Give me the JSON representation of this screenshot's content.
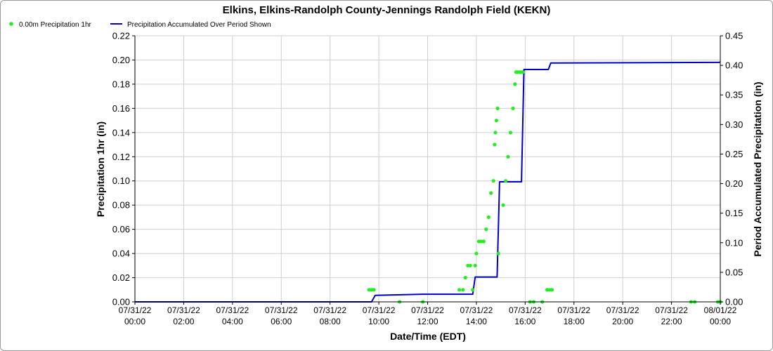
{
  "chart_data": {
    "type": "line",
    "title": "Elkins, Elkins-Randolph County-Jennings Randolph Field (KEKN)",
    "xlabel": "Date/Time (EDT)",
    "ylabel_left": "Precipitation 1hr (in)",
    "ylabel_right": "Period Accumulated Precipitation (in)",
    "legend_placement": "top-left",
    "grid": true,
    "colors": {
      "scatter": "#22ee22",
      "line": "#0000cc",
      "grid": "#cfcfcf",
      "axis": "#000000"
    },
    "x_ticks": [
      {
        "h": 0,
        "d": "07/31/22",
        "t": "00:00"
      },
      {
        "h": 2,
        "d": "07/31/22",
        "t": "02:00"
      },
      {
        "h": 4,
        "d": "07/31/22",
        "t": "04:00"
      },
      {
        "h": 6,
        "d": "07/31/22",
        "t": "06:00"
      },
      {
        "h": 8,
        "d": "07/31/22",
        "t": "08:00"
      },
      {
        "h": 10,
        "d": "07/31/22",
        "t": "10:00"
      },
      {
        "h": 12,
        "d": "07/31/22",
        "t": "12:00"
      },
      {
        "h": 14,
        "d": "07/31/22",
        "t": "14:00"
      },
      {
        "h": 16,
        "d": "07/31/22",
        "t": "16:00"
      },
      {
        "h": 18,
        "d": "07/31/22",
        "t": "18:00"
      },
      {
        "h": 20,
        "d": "07/31/22",
        "t": "20:00"
      },
      {
        "h": 22,
        "d": "07/31/22",
        "t": "22:00"
      },
      {
        "h": 24,
        "d": "08/01/22",
        "t": "00:00"
      }
    ],
    "xlim": [
      0,
      24
    ],
    "y_left": {
      "lim": [
        0,
        0.22
      ],
      "ticks": [
        "0.00",
        "0.02",
        "0.04",
        "0.06",
        "0.08",
        "0.10",
        "0.12",
        "0.14",
        "0.16",
        "0.18",
        "0.20",
        "0.22"
      ]
    },
    "y_right": {
      "lim": [
        0,
        0.45
      ],
      "ticks": [
        "0.00",
        "0.05",
        "0.10",
        "0.15",
        "0.20",
        "0.25",
        "0.30",
        "0.35",
        "0.40",
        "0.45"
      ]
    },
    "series": [
      {
        "name": "0.00m Precipitation 1hr",
        "kind": "scatter",
        "axis": "left",
        "points": [
          [
            9.6,
            0.01
          ],
          [
            9.7,
            0.01
          ],
          [
            9.8,
            0.01
          ],
          [
            10.85,
            0.0
          ],
          [
            11.8,
            0.0
          ],
          [
            13.3,
            0.01
          ],
          [
            13.45,
            0.01
          ],
          [
            13.55,
            0.02
          ],
          [
            13.65,
            0.03
          ],
          [
            13.75,
            0.03
          ],
          [
            13.85,
            0.01
          ],
          [
            13.95,
            0.03
          ],
          [
            14.0,
            0.04
          ],
          [
            14.1,
            0.05
          ],
          [
            14.2,
            0.05
          ],
          [
            14.3,
            0.05
          ],
          [
            14.4,
            0.06
          ],
          [
            14.5,
            0.07
          ],
          [
            14.6,
            0.09
          ],
          [
            14.7,
            0.1
          ],
          [
            14.75,
            0.13
          ],
          [
            14.78,
            0.14
          ],
          [
            14.82,
            0.15
          ],
          [
            14.87,
            0.16
          ],
          [
            14.9,
            0.04
          ],
          [
            15.1,
            0.08
          ],
          [
            15.2,
            0.1
          ],
          [
            15.3,
            0.12
          ],
          [
            15.4,
            0.14
          ],
          [
            15.5,
            0.16
          ],
          [
            15.58,
            0.18
          ],
          [
            15.63,
            0.19
          ],
          [
            15.7,
            0.19
          ],
          [
            15.8,
            0.19
          ],
          [
            15.9,
            0.19
          ],
          [
            16.2,
            0.0
          ],
          [
            16.35,
            0.0
          ],
          [
            16.7,
            0.0
          ],
          [
            16.9,
            0.01
          ],
          [
            17.0,
            0.01
          ],
          [
            17.1,
            0.01
          ],
          [
            22.8,
            0.0
          ],
          [
            22.95,
            0.0
          ],
          [
            23.9,
            0.0
          ],
          [
            24.0,
            0.0
          ]
        ]
      },
      {
        "name": "Precipitation Accumulated Over Period Shown",
        "kind": "line",
        "axis": "right",
        "points": [
          [
            0,
            0.0
          ],
          [
            9.7,
            0.0
          ],
          [
            9.85,
            0.011
          ],
          [
            11.8,
            0.013
          ],
          [
            13.85,
            0.013
          ],
          [
            13.95,
            0.042
          ],
          [
            14.85,
            0.042
          ],
          [
            14.95,
            0.203
          ],
          [
            15.85,
            0.203
          ],
          [
            15.95,
            0.393
          ],
          [
            16.95,
            0.393
          ],
          [
            17.05,
            0.404
          ],
          [
            23.95,
            0.405
          ],
          [
            24.0,
            0.406
          ]
        ]
      }
    ]
  }
}
